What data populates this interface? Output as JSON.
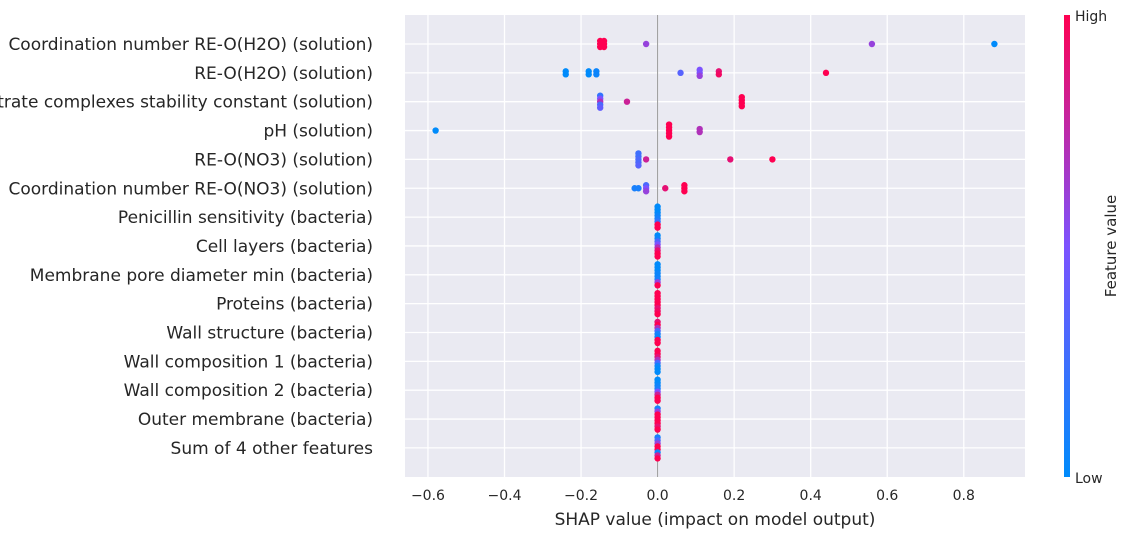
{
  "chart_data": {
    "type": "scatter",
    "subtype": "shap-beeswarm",
    "xlabel": "SHAP value (impact on model output)",
    "xlim": [
      -0.66,
      0.96
    ],
    "xticks": [
      -0.6,
      -0.4,
      -0.2,
      0.0,
      0.2,
      0.4,
      0.6,
      0.8
    ],
    "xtick_labels": [
      "−0.6",
      "−0.4",
      "−0.2",
      "0.0",
      "0.2",
      "0.4",
      "0.6",
      "0.8"
    ],
    "grid": true,
    "background_color": "#eaeaf2",
    "colorbar": {
      "label": "Feature value",
      "high_label": "High",
      "low_label": "Low",
      "low_color": "#008bfb",
      "mid_color": "#7c52ff",
      "high_color": "#ff0051",
      "placement": "right"
    },
    "features": [
      {
        "name": "Coordination number RE-O(H2O) (solution)",
        "points": [
          [
            -0.15,
            1
          ],
          [
            -0.15,
            1
          ],
          [
            -0.15,
            1
          ],
          [
            -0.14,
            1
          ],
          [
            -0.14,
            1
          ],
          [
            -0.14,
            1
          ],
          [
            -0.03,
            0.6
          ],
          [
            0.56,
            0.6
          ],
          [
            0.88,
            0
          ]
        ]
      },
      {
        "name": "RE-O(H2O) (solution)",
        "points": [
          [
            -0.24,
            0
          ],
          [
            -0.24,
            0
          ],
          [
            -0.18,
            0
          ],
          [
            -0.18,
            0
          ],
          [
            -0.16,
            0.05
          ],
          [
            -0.16,
            0.05
          ],
          [
            0.06,
            0.35
          ],
          [
            0.11,
            0.5
          ],
          [
            0.11,
            0.5
          ],
          [
            0.11,
            0.6
          ],
          [
            0.16,
            0.9
          ],
          [
            0.16,
            0.95
          ],
          [
            0.44,
            1
          ]
        ]
      },
      {
        "name": "Nitrate complexes stability constant (solution)",
        "points": [
          [
            -0.15,
            0.2
          ],
          [
            -0.15,
            0.5
          ],
          [
            -0.15,
            0.7
          ],
          [
            -0.15,
            0.3
          ],
          [
            -0.15,
            0.4
          ],
          [
            -0.08,
            0.8
          ],
          [
            0.22,
            1
          ],
          [
            0.22,
            1
          ],
          [
            0.22,
            1
          ],
          [
            0.22,
            1
          ]
        ]
      },
      {
        "name": "pH (solution)",
        "points": [
          [
            -0.58,
            0
          ],
          [
            0.03,
            1
          ],
          [
            0.03,
            1
          ],
          [
            0.03,
            1
          ],
          [
            0.03,
            1
          ],
          [
            0.03,
            1
          ],
          [
            0.11,
            0.7
          ],
          [
            0.11,
            0.7
          ]
        ]
      },
      {
        "name": "RE-O(NO3) (solution)",
        "points": [
          [
            -0.05,
            0.25
          ],
          [
            -0.05,
            0.25
          ],
          [
            -0.05,
            0.3
          ],
          [
            -0.05,
            0.3
          ],
          [
            -0.05,
            0.35
          ],
          [
            -0.03,
            0.8
          ],
          [
            0.19,
            0.9
          ],
          [
            0.3,
            1
          ]
        ]
      },
      {
        "name": "Coordination number RE-O(NO3) (solution)",
        "points": [
          [
            -0.06,
            0.1
          ],
          [
            -0.05,
            0.1
          ],
          [
            -0.03,
            0.3
          ],
          [
            -0.03,
            0.5
          ],
          [
            -0.03,
            0.6
          ],
          [
            0.02,
            0.9
          ],
          [
            0.07,
            1
          ],
          [
            0.07,
            1
          ],
          [
            0.07,
            1
          ]
        ]
      },
      {
        "name": "Penicillin sensitivity (bacteria)",
        "points": [
          [
            0,
            0
          ],
          [
            0,
            0
          ],
          [
            0,
            0
          ],
          [
            0,
            0.05
          ],
          [
            0,
            0.1
          ],
          [
            0,
            0.2
          ],
          [
            0,
            1
          ],
          [
            0,
            1
          ]
        ]
      },
      {
        "name": "Cell layers (bacteria)",
        "points": [
          [
            0,
            0
          ],
          [
            0,
            0.05
          ],
          [
            0,
            0.3
          ],
          [
            0,
            0.5
          ],
          [
            0,
            0.7
          ],
          [
            0,
            0.9
          ],
          [
            0,
            1
          ],
          [
            0,
            1
          ]
        ]
      },
      {
        "name": "Membrane pore diameter min (bacteria)",
        "points": [
          [
            0,
            0
          ],
          [
            0,
            0
          ],
          [
            0,
            0
          ],
          [
            0,
            0.05
          ],
          [
            0,
            0.05
          ],
          [
            0,
            0.1
          ],
          [
            0,
            0.6
          ],
          [
            0,
            1
          ]
        ]
      },
      {
        "name": "Proteins (bacteria)",
        "points": [
          [
            0,
            1
          ],
          [
            0,
            1
          ],
          [
            0,
            1
          ],
          [
            0,
            1
          ],
          [
            0,
            1
          ],
          [
            0,
            0.9
          ],
          [
            0,
            0.95
          ],
          [
            0,
            1
          ]
        ]
      },
      {
        "name": "Wall structure (bacteria)",
        "points": [
          [
            0,
            0.9
          ],
          [
            0,
            1
          ],
          [
            0,
            0.7
          ],
          [
            0,
            0.3
          ],
          [
            0,
            0.1
          ],
          [
            0,
            0.05
          ],
          [
            0,
            1
          ],
          [
            0,
            1
          ]
        ]
      },
      {
        "name": "Wall composition 1 (bacteria)",
        "points": [
          [
            0,
            1
          ],
          [
            0,
            1
          ],
          [
            0,
            0.9
          ],
          [
            0,
            0.7
          ],
          [
            0,
            0.3
          ],
          [
            0,
            0.05
          ],
          [
            0,
            0
          ],
          [
            0,
            0
          ]
        ]
      },
      {
        "name": "Wall composition 2 (bacteria)",
        "points": [
          [
            0,
            0
          ],
          [
            0,
            0
          ],
          [
            0,
            0.05
          ],
          [
            0,
            0.1
          ],
          [
            0,
            0.5
          ],
          [
            0,
            0.8
          ],
          [
            0,
            1
          ],
          [
            0,
            1
          ]
        ]
      },
      {
        "name": "Outer membrane (bacteria)",
        "points": [
          [
            0,
            0.1
          ],
          [
            0,
            0.6
          ],
          [
            0,
            1
          ],
          [
            0,
            1
          ],
          [
            0,
            1
          ],
          [
            0,
            1
          ],
          [
            0,
            0.9
          ],
          [
            0,
            1
          ]
        ]
      },
      {
        "name": "Sum of 4 other features",
        "points": [
          [
            0,
            0.1
          ],
          [
            0,
            0.3
          ],
          [
            0,
            0.6
          ],
          [
            0,
            1
          ],
          [
            0,
            1
          ],
          [
            0,
            0.05
          ],
          [
            0,
            0.8
          ],
          [
            0,
            1
          ]
        ]
      }
    ]
  }
}
